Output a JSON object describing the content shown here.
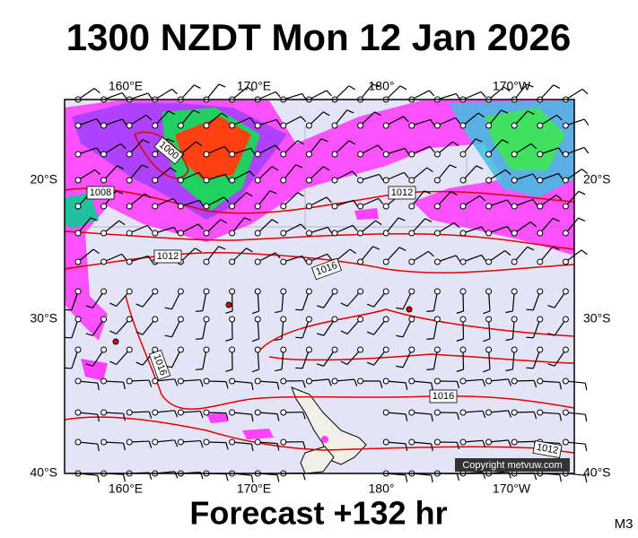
{
  "title": "1300 NZDT Mon 12 Jan 2026",
  "footer": "Forecast +132 hr",
  "code": "M3",
  "copyright": "Copyright metvuw.com",
  "axes": {
    "lon_top": [
      "160°E",
      "170°E",
      "180°",
      "170°W"
    ],
    "lon_bottom": [
      "160°E",
      "170°E",
      "180°",
      "170°W"
    ],
    "lat_left": [
      "20°S",
      "30°S",
      "40°S"
    ],
    "lat_right": [
      "20°S",
      "30°S",
      "40°S"
    ]
  },
  "isobar_labels": [
    "1000",
    "1008",
    "1012",
    "1012",
    "1016",
    "1016",
    "1016",
    "1012"
  ]
}
